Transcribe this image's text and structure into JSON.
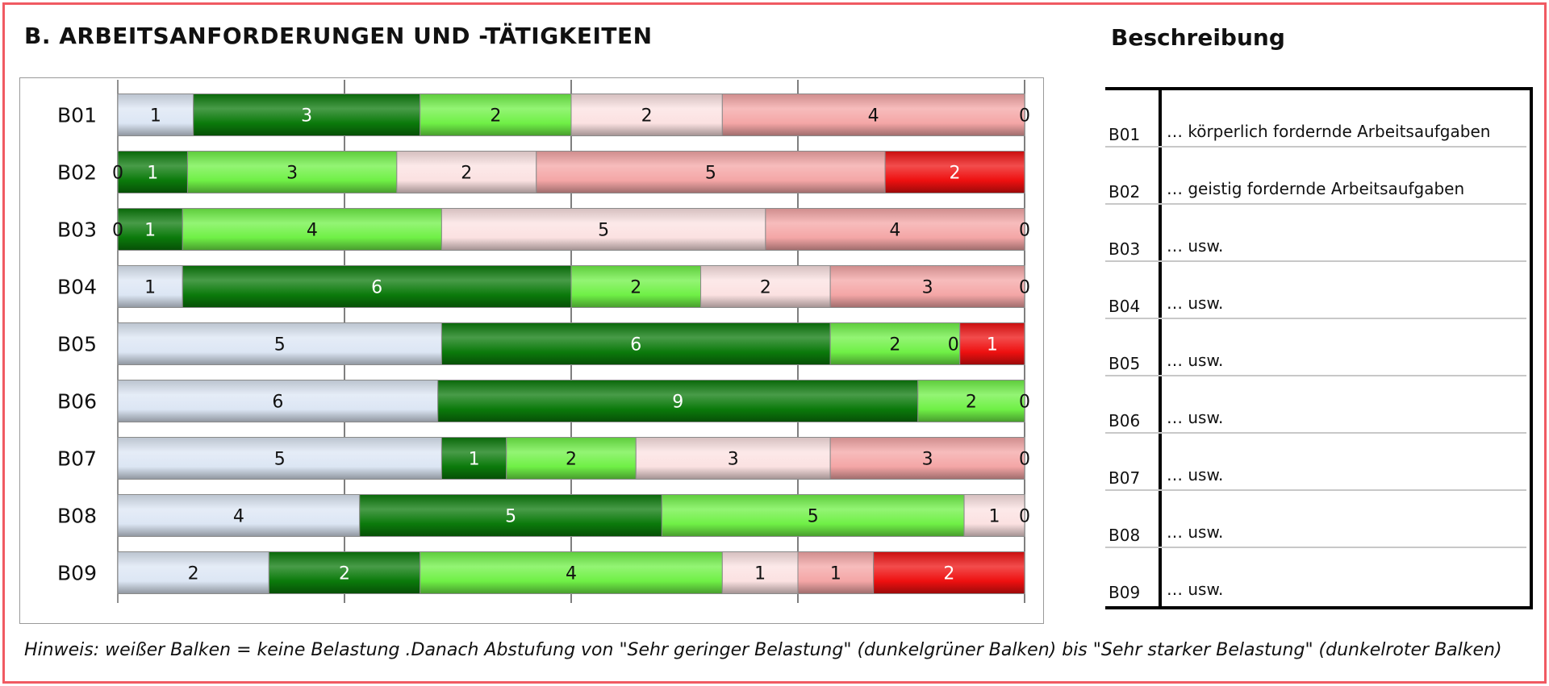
{
  "page": {
    "section_title": "B. ARBEITSANFORDERUNGEN UND -TÄTIGKEITEN",
    "description_title": "Beschreibung",
    "footnote": "Hinweis: weißer Balken = keine Belastung .Danach Abstufung von \"Sehr geringer Belastung\" (dunkelgrüner Balken) bis \"Sehr starker Belastung\" (dunkelroter Balken)",
    "frame_color": "#f05a62"
  },
  "chart_data": {
    "type": "bar",
    "orientation": "horizontal",
    "stacked": "100%",
    "categories": [
      "B01",
      "B02",
      "B03",
      "B04",
      "B05",
      "B06",
      "B07",
      "B08",
      "B09"
    ],
    "series": [
      {
        "color": "#dce6f4",
        "values": [
          1,
          0,
          0,
          1,
          5,
          6,
          5,
          4,
          2
        ]
      },
      {
        "color": "#0b7a0b",
        "values": [
          3,
          1,
          1,
          6,
          6,
          9,
          1,
          5,
          2
        ]
      },
      {
        "color": "#6ff046",
        "values": [
          2,
          3,
          4,
          2,
          2,
          2,
          2,
          5,
          4
        ]
      },
      {
        "color": "#fbe1e1",
        "values": [
          2,
          2,
          5,
          2,
          0,
          0,
          3,
          1,
          1
        ]
      },
      {
        "color": "#f4a6a6",
        "values": [
          4,
          5,
          4,
          3,
          0,
          0,
          3,
          0,
          1
        ]
      },
      {
        "color": "#ee1010",
        "values": [
          0,
          2,
          0,
          0,
          1,
          0,
          0,
          0,
          2
        ]
      }
    ],
    "data_labels": [
      [
        "1",
        "3",
        "2",
        "2",
        "4",
        "0"
      ],
      [
        "0",
        "1",
        "3",
        "2",
        "5",
        "2"
      ],
      [
        "0",
        "1",
        "4",
        "5",
        "4",
        "0"
      ],
      [
        "1",
        "6",
        "2",
        "2",
        "3",
        "0"
      ],
      [
        "5",
        "6",
        "2",
        "0",
        "1"
      ],
      [
        "6",
        "9",
        "2",
        "0"
      ],
      [
        "5",
        "1",
        "2",
        "3",
        "3",
        "0"
      ],
      [
        "4",
        "5",
        "5",
        "1",
        "0"
      ],
      [
        "2",
        "2",
        "4",
        "1",
        "1",
        "2"
      ]
    ],
    "gridlines": 4,
    "legend": "none"
  },
  "descriptions": [
    {
      "code": "B01",
      "text": "… körperlich fordernde Arbeitsaufgaben"
    },
    {
      "code": "B02",
      "text": "… geistig fordernde Arbeitsaufgaben"
    },
    {
      "code": "B03",
      "text": "… usw."
    },
    {
      "code": "B04",
      "text": "… usw."
    },
    {
      "code": "B05",
      "text": "… usw."
    },
    {
      "code": "B06",
      "text": "… usw."
    },
    {
      "code": "B07",
      "text": "… usw."
    },
    {
      "code": "B08",
      "text": "… usw."
    },
    {
      "code": "B09",
      "text": "… usw."
    }
  ]
}
